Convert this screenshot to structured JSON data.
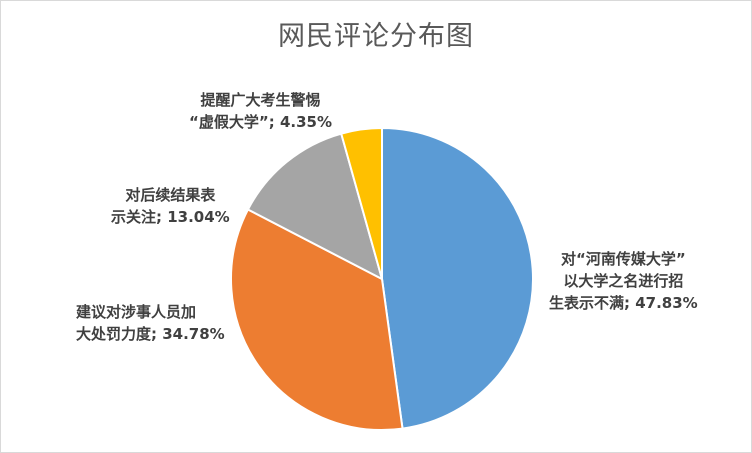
{
  "chart_data": {
    "type": "pie",
    "title": "网民评论分布图",
    "slices": [
      {
        "label_lines": [
          "对“河南传媒大学”",
          "以大学之名进行招",
          "生表示不满; 47.83%"
        ],
        "value": 47.83,
        "color": "#5b9bd5"
      },
      {
        "label_lines": [
          "建议对涉事人员加",
          "大处罚力度; 34.78%"
        ],
        "value": 34.78,
        "color": "#ed7d31"
      },
      {
        "label_lines": [
          "对后续结果表",
          "示关注; 13.04%"
        ],
        "value": 13.04,
        "color": "#a5a5a5"
      },
      {
        "label_lines": [
          "提醒广大考生警惕",
          "“虚假大学”; 4.35%"
        ],
        "value": 4.35,
        "color": "#ffc000"
      }
    ]
  }
}
